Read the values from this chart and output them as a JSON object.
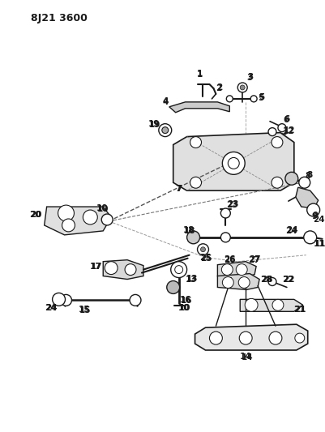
{
  "title": "8J21 3600",
  "bg_color": "#ffffff",
  "line_color": "#1a1a1a",
  "title_fontsize": 9,
  "label_fontsize": 7.5,
  "fig_width": 4.02,
  "fig_height": 5.33,
  "dpi": 100
}
